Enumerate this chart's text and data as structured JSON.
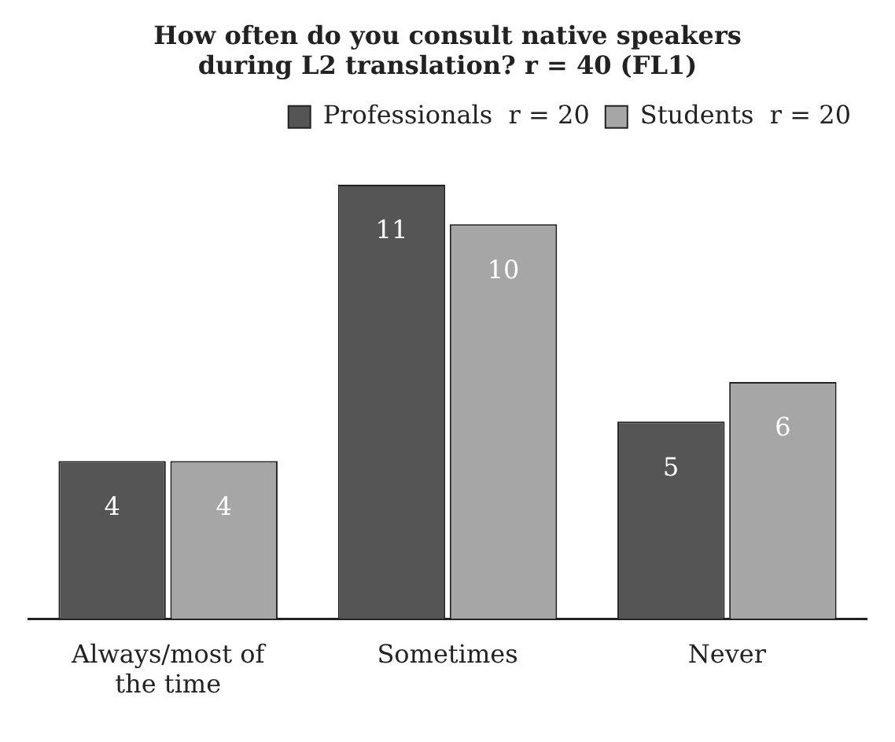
{
  "chart_data": {
    "type": "bar",
    "title": "How often do you consult native speakers during L2 translation? r = 40 (FL1)",
    "categories": [
      "Always/most of the time",
      "Sometimes",
      "Never"
    ],
    "series": [
      {
        "name": "Professionals  r = 20",
        "color": "#555555",
        "values": [
          4,
          11,
          5
        ]
      },
      {
        "name": "Students  r = 20",
        "color": "#a6a6a6",
        "values": [
          4,
          10,
          6
        ]
      }
    ],
    "data_labels": true,
    "legend": "top right",
    "grid": false
  }
}
